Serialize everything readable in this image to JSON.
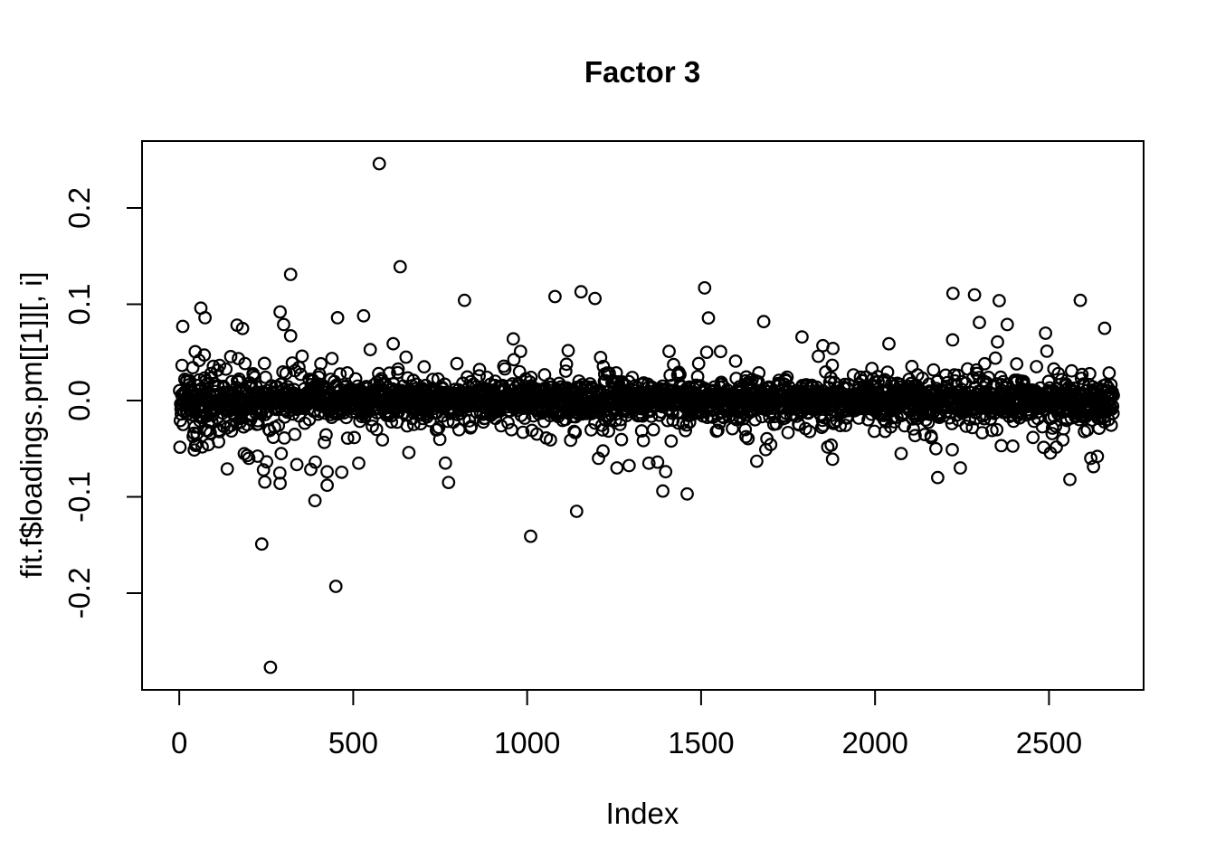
{
  "figure": {
    "background": "#ffffff",
    "foreground": "#000000"
  },
  "chart_data": {
    "type": "scatter",
    "title": "Factor 3",
    "xlabel": "Index",
    "ylabel": "fit.f$loadings.pm[[1]][, i]",
    "grid": false,
    "legend": null,
    "xlim": [
      -107,
      2772
    ],
    "ylim": [
      -0.3005,
      0.2695
    ],
    "x_ticks": [
      {
        "v": 0,
        "label": "0"
      },
      {
        "v": 500,
        "label": "500"
      },
      {
        "v": 1000,
        "label": "1000"
      },
      {
        "v": 1500,
        "label": "1500"
      },
      {
        "v": 2000,
        "label": "2000"
      },
      {
        "v": 2500,
        "label": "2500"
      }
    ],
    "y_ticks": [
      {
        "v": 0.2,
        "label": "0.2"
      },
      {
        "v": 0.1,
        "label": "0.1"
      },
      {
        "v": 0.0,
        "label": "0.0"
      },
      {
        "v": -0.1,
        "label": "-0.1"
      },
      {
        "v": -0.2,
        "label": "-0.2"
      }
    ],
    "n_points": 2685,
    "marker": {
      "shape": "open-circle",
      "color": "#000000",
      "radius_px": 6.3,
      "stroke_px": 2.2
    },
    "band_model": {
      "comment": "dense loadings band centered at 0; most points within +/-0.03, halo to +/-0.06, wider spread at low index",
      "seed": 1337,
      "tiers": [
        {
          "p": 0.62,
          "sd": 0.0085
        },
        {
          "p": 0.87,
          "sd": 0.016
        },
        {
          "p": 0.965,
          "sd": 0.027
        },
        {
          "p": 0.995,
          "sd": 0.04
        },
        {
          "p": 1.01,
          "sd": 0.055
        }
      ],
      "left_boost": 0.8,
      "left_scale": 130,
      "dip_range": [
        180,
        520
      ],
      "dip_prob": 0.02,
      "clamp": 0.115
    },
    "outliers": [
      [
        575,
        0.246
      ],
      [
        635,
        0.139
      ],
      [
        320,
        0.131
      ],
      [
        1510,
        0.117
      ],
      [
        1155,
        0.113
      ],
      [
        1080,
        0.108
      ],
      [
        1195,
        0.106
      ],
      [
        820,
        0.104
      ],
      [
        2590,
        0.104
      ],
      [
        62,
        0.096
      ],
      [
        290,
        0.092
      ],
      [
        530,
        0.088
      ],
      [
        74,
        0.086
      ],
      [
        455,
        0.086
      ],
      [
        1680,
        0.082
      ],
      [
        2300,
        0.081
      ],
      [
        2380,
        0.079
      ],
      [
        300,
        0.079
      ],
      [
        10,
        0.077
      ],
      [
        2490,
        0.07
      ],
      [
        1790,
        0.066
      ],
      [
        960,
        0.064
      ],
      [
        2040,
        0.059
      ],
      [
        1850,
        0.057
      ],
      [
        262,
        -0.277
      ],
      [
        450,
        -0.193
      ],
      [
        237,
        -0.149
      ],
      [
        1010,
        -0.141
      ],
      [
        390,
        -0.104
      ],
      [
        1460,
        -0.097
      ],
      [
        1390,
        -0.094
      ],
      [
        425,
        -0.088
      ],
      [
        290,
        -0.086
      ],
      [
        2560,
        -0.082
      ],
      [
        2180,
        -0.08
      ],
      [
        425,
        -0.074
      ],
      [
        242,
        -0.072
      ],
      [
        138,
        -0.071
      ],
      [
        1258,
        -0.07
      ],
      [
        2245,
        -0.07
      ],
      [
        765,
        -0.065
      ],
      [
        1375,
        -0.064
      ],
      [
        1660,
        -0.063
      ],
      [
        1205,
        -0.06
      ],
      [
        2620,
        -0.06
      ],
      [
        2639,
        -0.058
      ],
      [
        2075,
        -0.055
      ],
      [
        660,
        -0.054
      ]
    ]
  }
}
